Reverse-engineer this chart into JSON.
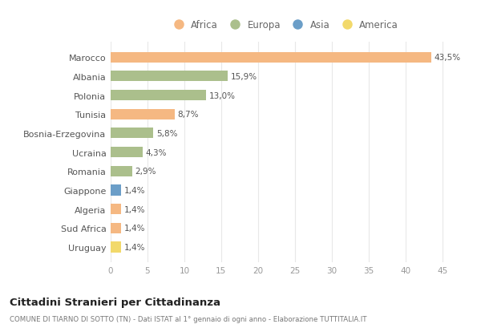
{
  "countries": [
    "Marocco",
    "Albania",
    "Polonia",
    "Tunisia",
    "Bosnia-Erzegovina",
    "Ucraina",
    "Romania",
    "Giappone",
    "Algeria",
    "Sud Africa",
    "Uruguay"
  ],
  "values": [
    43.5,
    15.9,
    13.0,
    8.7,
    5.8,
    4.3,
    2.9,
    1.4,
    1.4,
    1.4,
    1.4
  ],
  "labels": [
    "43,5%",
    "15,9%",
    "13,0%",
    "8,7%",
    "5,8%",
    "4,3%",
    "2,9%",
    "1,4%",
    "1,4%",
    "1,4%",
    "1,4%"
  ],
  "colors": [
    "#F5B882",
    "#ABBF8C",
    "#ABBF8C",
    "#F5B882",
    "#ABBF8C",
    "#ABBF8C",
    "#ABBF8C",
    "#6B9EC8",
    "#F5B882",
    "#F5B882",
    "#F2D96B"
  ],
  "legend_labels": [
    "Africa",
    "Europa",
    "Asia",
    "America"
  ],
  "legend_colors": [
    "#F5B882",
    "#ABBF8C",
    "#6B9EC8",
    "#F2D96B"
  ],
  "title": "Cittadini Stranieri per Cittadinanza",
  "subtitle": "COMUNE DI TIARNO DI SOTTO (TN) - Dati ISTAT al 1° gennaio di ogni anno - Elaborazione TUTTITALIA.IT",
  "xlim": [
    0,
    47
  ],
  "xticks": [
    0,
    5,
    10,
    15,
    20,
    25,
    30,
    35,
    40,
    45
  ],
  "bg_color": "#FFFFFF",
  "grid_color": "#E8E8E8",
  "bar_height": 0.55
}
